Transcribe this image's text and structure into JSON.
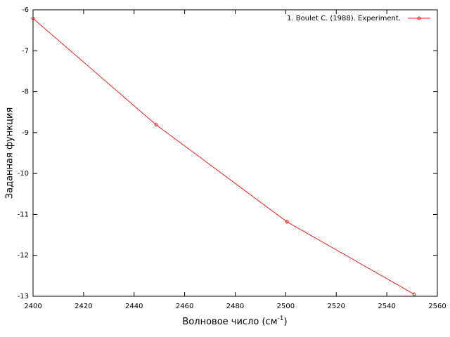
{
  "chart_data": {
    "type": "line",
    "x_label": {
      "text": "Волновое число (см",
      "superscript": "-1",
      "suffix": ")"
    },
    "y_label": "Заданная функция",
    "x": [
      2400,
      2448.7,
      2500.5,
      2550.8
    ],
    "series": [
      {
        "name": "1. Boulet C. (1988). Experiment.",
        "color": "#e8221c",
        "values": [
          -6.21,
          -8.81,
          -11.18,
          -12.95
        ]
      }
    ],
    "xlim": [
      2400,
      2560
    ],
    "xticks": [
      2400,
      2420,
      2440,
      2460,
      2480,
      2500,
      2520,
      2540,
      2560
    ],
    "ylim": [
      -13,
      -6
    ],
    "yticks": [
      -13,
      -12,
      -11,
      -10,
      -9,
      -8,
      -7,
      -6
    ],
    "grid": false,
    "legend": "top-right"
  }
}
